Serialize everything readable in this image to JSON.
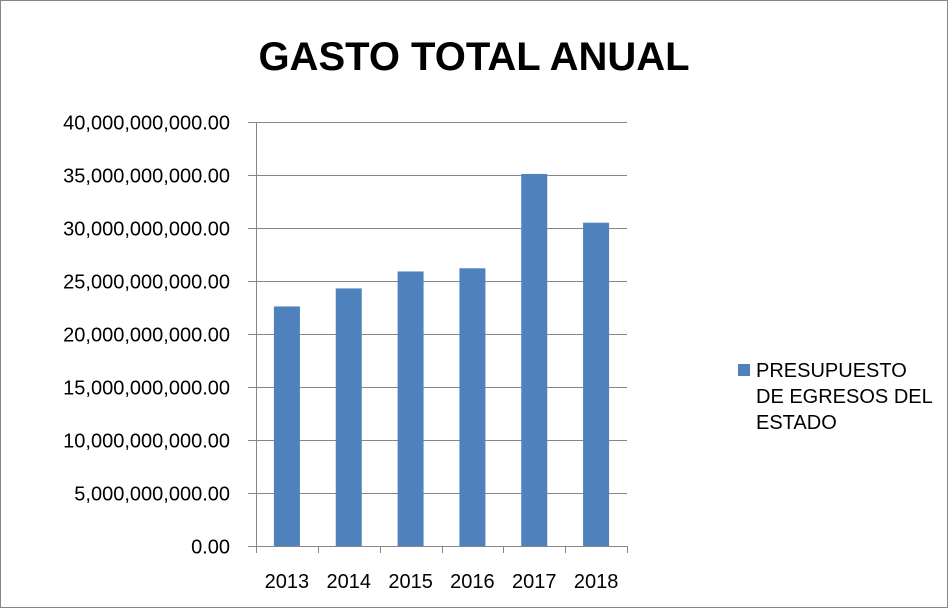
{
  "chart_data": {
    "type": "bar",
    "title": "GASTO TOTAL ANUAL",
    "categories": [
      "2013",
      "2014",
      "2015",
      "2016",
      "2017",
      "2018"
    ],
    "series": [
      {
        "name": "PRESUPUESTO DE EGRESOS DEL ESTADO",
        "values": [
          22600000000,
          24300000000,
          25900000000,
          26200000000,
          35100000000,
          30500000000
        ],
        "color": "#4f81bd"
      }
    ],
    "ylim": [
      0,
      40000000000
    ],
    "ytick_step": 5000000000,
    "ytick_labels": [
      "0.00",
      "5,000,000,000.00",
      "10,000,000,000.00",
      "15,000,000,000.00",
      "20,000,000,000.00",
      "25,000,000,000.00",
      "30,000,000,000.00",
      "35,000,000,000.00",
      "40,000,000,000.00"
    ],
    "xlabel": "",
    "ylabel": "",
    "grid": true,
    "legend_position": "right",
    "gridline_color": "#868686"
  }
}
